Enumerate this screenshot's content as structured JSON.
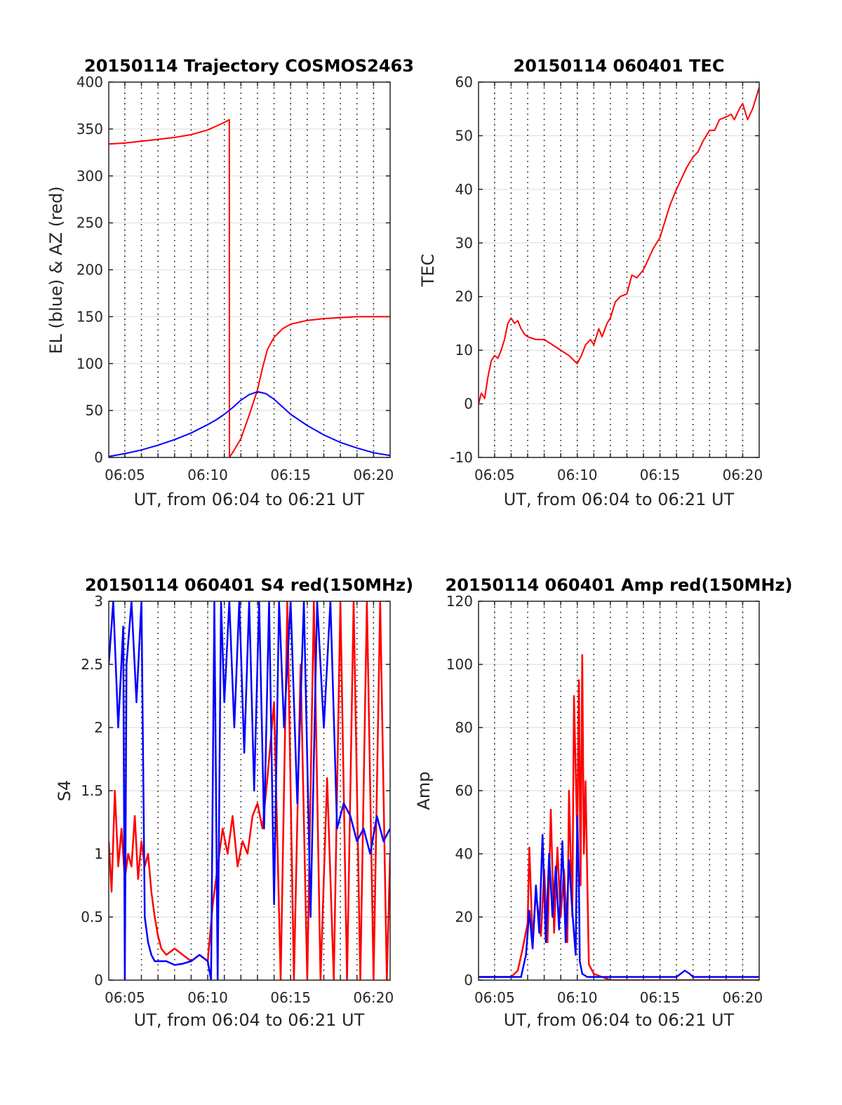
{
  "figure": {
    "colors": {
      "red": "#ff0000",
      "blue": "#0000ff",
      "axis": "#262626",
      "grid": "#e6e6e6"
    }
  },
  "chart_data": [
    {
      "id": "trajectory",
      "type": "line",
      "title": "20150114 Trajectory COSMOS2463",
      "xlabel": "UT, from 06:04 to 06:21 UT",
      "ylabel": "EL (blue) & AZ (red)",
      "xlim_minutes": [
        4.03,
        21.0
      ],
      "ylim": [
        0,
        400
      ],
      "yticks": [
        "0",
        "50",
        "100",
        "150",
        "200",
        "250",
        "300",
        "350",
        "400"
      ],
      "xticks": [
        "06:05",
        "06:10",
        "06:15",
        "06:20"
      ],
      "grid": true,
      "series": [
        {
          "name": "AZ (red)",
          "color": "red",
          "x": [
            4.03,
            5,
            6,
            7,
            8,
            9,
            10,
            10.5,
            11,
            11.3,
            11.31,
            11.6,
            12,
            12.5,
            13,
            13.3,
            13.6,
            14,
            14.5,
            15,
            16,
            17,
            18,
            19,
            20,
            21
          ],
          "y": [
            334,
            335,
            337,
            339,
            341,
            344,
            349,
            353,
            357,
            360,
            0,
            8,
            20,
            45,
            72,
            95,
            115,
            128,
            137,
            142,
            146,
            148,
            149,
            150,
            150,
            150
          ]
        },
        {
          "name": "EL (blue)",
          "color": "blue",
          "x": [
            4.03,
            5,
            6,
            7,
            8,
            9,
            10,
            10.5,
            11,
            11.5,
            12,
            12.5,
            13,
            13.5,
            14,
            14.5,
            15,
            16,
            17,
            18,
            19,
            20,
            21
          ],
          "y": [
            1,
            4,
            8,
            13,
            19,
            26,
            35,
            40,
            46,
            53,
            61,
            67,
            70,
            68,
            62,
            54,
            46,
            34,
            24,
            16,
            10,
            5,
            2
          ]
        }
      ]
    },
    {
      "id": "tec",
      "type": "line",
      "title": "20150114 060401 TEC",
      "xlabel": "UT, from 06:04 to 06:21 UT",
      "ylabel": "TEC",
      "xlim_minutes": [
        4.03,
        21.0
      ],
      "ylim": [
        -10,
        60
      ],
      "yticks": [
        "-10",
        "0",
        "10",
        "20",
        "30",
        "40",
        "50",
        "60"
      ],
      "xticks": [
        "06:05",
        "06:10",
        "06:15",
        "06:20"
      ],
      "grid": true,
      "series": [
        {
          "name": "TEC",
          "color": "red",
          "x": [
            4.03,
            4.2,
            4.4,
            4.6,
            4.8,
            5.0,
            5.2,
            5.4,
            5.6,
            5.8,
            6.0,
            6.2,
            6.4,
            6.6,
            6.8,
            7.0,
            7.5,
            8.0,
            8.5,
            9.0,
            9.5,
            10.0,
            10.25,
            10.5,
            10.8,
            11.0,
            11.3,
            11.5,
            11.8,
            12.0,
            12.3,
            12.6,
            13.0,
            13.3,
            13.6,
            14.0,
            14.3,
            14.6,
            15.0,
            15.3,
            15.6,
            16.0,
            16.3,
            16.6,
            17.0,
            17.3,
            17.6,
            18.0,
            18.3,
            18.6,
            19.0,
            19.3,
            19.5,
            19.8,
            20.0,
            20.3,
            20.6,
            21.0
          ],
          "y": [
            0,
            2,
            1,
            5,
            8,
            9,
            8.5,
            10,
            12,
            15,
            16,
            15,
            15.5,
            14,
            13,
            12.5,
            12,
            12,
            11,
            10,
            9,
            7.5,
            9,
            11,
            12,
            11,
            14,
            12.5,
            15,
            16,
            19,
            20,
            20.5,
            24,
            23.5,
            25,
            27,
            29,
            31,
            34,
            37,
            40,
            42,
            44,
            46,
            47,
            49,
            51,
            51,
            53,
            53.5,
            54,
            53,
            55,
            56,
            53,
            55,
            59
          ]
        }
      ]
    },
    {
      "id": "s4",
      "type": "line",
      "title": "20150114 060401 S4 red(150MHz)",
      "xlabel": "UT, from 06:04 to 06:21 UT",
      "ylabel": "S4",
      "xlim_minutes": [
        4.03,
        21.0
      ],
      "ylim": [
        0,
        3
      ],
      "yticks": [
        "0",
        "0.5",
        "1",
        "1.5",
        "2",
        "2.5",
        "3"
      ],
      "xticks": [
        "06:05",
        "06:10",
        "06:15",
        "06:20"
      ],
      "grid": true,
      "series": [
        {
          "name": "S4 red",
          "color": "red",
          "x": [
            4.03,
            4.2,
            4.4,
            4.6,
            4.8,
            5.0,
            5.2,
            5.4,
            5.6,
            5.8,
            6.0,
            6.2,
            6.4,
            6.6,
            6.8,
            7.0,
            7.2,
            7.5,
            8.0,
            8.5,
            9.0,
            9.5,
            10.0,
            10.3,
            10.6,
            10.9,
            11.2,
            11.5,
            11.8,
            12.1,
            12.4,
            12.7,
            13.0,
            13.3,
            13.6,
            14.0,
            14.4,
            14.8,
            15.2,
            15.6,
            16.0,
            16.4,
            16.8,
            17.2,
            17.6,
            18.0,
            18.4,
            18.8,
            19.2,
            19.6,
            20.0,
            20.4,
            20.8,
            21.0
          ],
          "y": [
            1.1,
            0.7,
            1.5,
            0.9,
            1.2,
            0.8,
            1.0,
            0.9,
            1.3,
            0.8,
            1.1,
            0.9,
            1.0,
            0.7,
            0.5,
            0.35,
            0.25,
            0.2,
            0.25,
            0.2,
            0.15,
            0.2,
            0.15,
            0.6,
            0.9,
            1.2,
            1.0,
            1.3,
            0.9,
            1.1,
            1.0,
            1.3,
            1.4,
            1.2,
            1.6,
            2.2,
            0.0,
            3.0,
            0.0,
            2.5,
            0.0,
            3.0,
            0.0,
            1.6,
            0.0,
            3.0,
            0.0,
            3.0,
            0.0,
            3.0,
            0.0,
            3.0,
            0.0,
            1.0
          ]
        },
        {
          "name": "S4 blue",
          "color": "blue",
          "x": [
            4.03,
            4.3,
            4.6,
            4.9,
            5.0,
            5.1,
            5.4,
            5.7,
            6.0,
            6.2,
            6.4,
            6.6,
            6.8,
            7.0,
            7.5,
            8.0,
            8.5,
            9.0,
            9.5,
            10.0,
            10.2,
            10.4,
            10.6,
            10.8,
            11.0,
            11.3,
            11.6,
            11.9,
            12.2,
            12.5,
            12.8,
            13.1,
            13.4,
            13.7,
            14.0,
            14.3,
            14.6,
            15.0,
            15.4,
            15.8,
            16.2,
            16.6,
            17.0,
            17.4,
            17.8,
            18.2,
            18.6,
            19.0,
            19.4,
            19.8,
            20.2,
            20.6,
            21.0
          ],
          "y": [
            2.5,
            3.0,
            2.0,
            2.8,
            0.0,
            2.5,
            3.0,
            2.2,
            3.0,
            0.5,
            0.3,
            0.2,
            0.15,
            0.15,
            0.15,
            0.12,
            0.13,
            0.15,
            0.2,
            0.15,
            0.0,
            3.0,
            0.0,
            3.0,
            2.2,
            3.0,
            2.0,
            3.0,
            1.8,
            3.0,
            1.5,
            3.0,
            1.2,
            3.0,
            0.6,
            3.0,
            2.0,
            3.0,
            1.4,
            3.0,
            0.5,
            3.0,
            2.0,
            3.0,
            1.2,
            1.4,
            1.3,
            1.1,
            1.2,
            1.0,
            1.3,
            1.1,
            1.2
          ]
        }
      ]
    },
    {
      "id": "amp",
      "type": "line",
      "title": "20150114 060401 Amp red(150MHz)",
      "xlabel": "UT, from 06:04 to 06:21 UT",
      "ylabel": "Amp",
      "xlim_minutes": [
        4.03,
        21.0
      ],
      "ylim": [
        0,
        120
      ],
      "yticks": [
        "0",
        "20",
        "40",
        "60",
        "80",
        "100",
        "120"
      ],
      "xticks": [
        "06:05",
        "06:10",
        "06:15",
        "06:20"
      ],
      "grid": true,
      "series": [
        {
          "name": "Amp red",
          "color": "red",
          "x": [
            4.03,
            4.5,
            5.0,
            5.5,
            6.0,
            6.4,
            6.7,
            7.0,
            7.1,
            7.3,
            7.5,
            7.8,
            8.0,
            8.2,
            8.4,
            8.6,
            8.8,
            9.0,
            9.2,
            9.4,
            9.5,
            9.7,
            9.8,
            10.0,
            10.1,
            10.2,
            10.3,
            10.4,
            10.5,
            10.7,
            11.0,
            11.5,
            12.0,
            21.0
          ],
          "y": [
            1,
            1,
            1,
            1,
            1,
            3,
            10,
            18,
            42,
            12,
            28,
            14,
            35,
            12,
            54,
            15,
            42,
            20,
            35,
            12,
            60,
            20,
            90,
            45,
            95,
            30,
            103,
            40,
            63,
            5,
            2,
            1,
            0,
            0
          ]
        },
        {
          "name": "Amp blue",
          "color": "blue",
          "x": [
            4.03,
            5.0,
            6.0,
            6.6,
            6.9,
            7.1,
            7.3,
            7.5,
            7.7,
            7.9,
            8.1,
            8.3,
            8.5,
            8.7,
            8.9,
            9.1,
            9.3,
            9.5,
            9.7,
            9.9,
            10.0,
            10.1,
            10.15,
            10.3,
            10.6,
            11.0,
            12.0,
            13.0,
            14.0,
            15.0,
            16.0,
            16.5,
            16.8,
            17.0,
            18.0,
            19.0,
            20.0,
            21.0
          ],
          "y": [
            1,
            1,
            1,
            1,
            8,
            22,
            10,
            30,
            15,
            46,
            12,
            40,
            20,
            36,
            16,
            44,
            12,
            38,
            22,
            8,
            52,
            30,
            6,
            2,
            1,
            1,
            1,
            1,
            1,
            1,
            1,
            3,
            2,
            1,
            1,
            1,
            1,
            1
          ]
        }
      ]
    }
  ]
}
